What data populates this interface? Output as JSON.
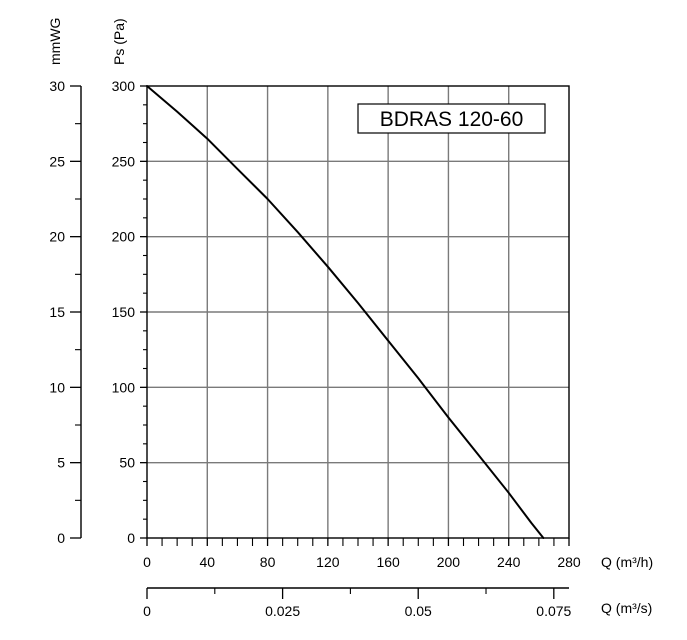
{
  "chart_data": {
    "type": "line",
    "title": "BDRAS 120-60",
    "y_primary": {
      "label": "Ps (Pa)",
      "ylim": [
        0,
        300
      ],
      "ticks": [
        "0",
        "50",
        "100",
        "150",
        "200",
        "250",
        "300"
      ]
    },
    "y_secondary": {
      "label": "mmWG",
      "ylim": [
        0,
        30
      ],
      "ticks": [
        "0",
        "5",
        "10",
        "15",
        "20",
        "25",
        "30"
      ]
    },
    "x_primary": {
      "label": "Q (m³/h)",
      "xlim": [
        0,
        280
      ],
      "ticks": [
        "0",
        "40",
        "80",
        "120",
        "160",
        "200",
        "240",
        "280"
      ]
    },
    "x_secondary": {
      "label": "Q (m³/s)",
      "xlim": [
        0,
        0.0778
      ],
      "ticks": [
        "0",
        "0.025",
        "0.05",
        "0.075"
      ]
    },
    "grid": true,
    "series": [
      {
        "x": [
          0,
          20,
          40,
          60,
          80,
          100,
          120,
          140,
          160,
          180,
          200,
          220,
          240,
          255,
          263
        ],
        "y": [
          300,
          283,
          265,
          245,
          225,
          203,
          180,
          156,
          131,
          106,
          80,
          55,
          30,
          10,
          0
        ]
      }
    ]
  }
}
